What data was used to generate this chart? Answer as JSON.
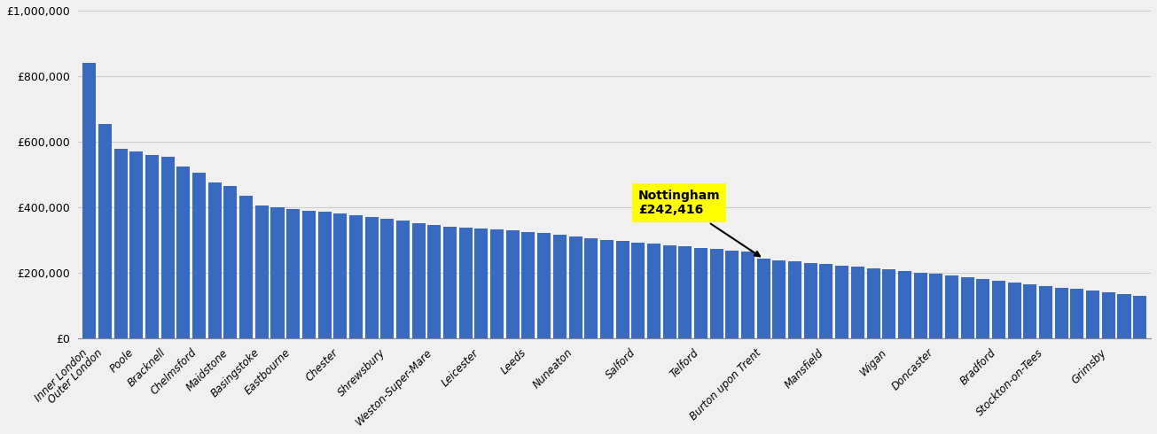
{
  "values": [
    840000,
    655000,
    578000,
    570000,
    560000,
    555000,
    525000,
    505000,
    475000,
    465000,
    435000,
    405000,
    400000,
    395000,
    390000,
    385000,
    380000,
    375000,
    370000,
    365000,
    360000,
    350000,
    345000,
    340000,
    338000,
    335000,
    332000,
    330000,
    325000,
    320000,
    315000,
    310000,
    305000,
    300000,
    296000,
    292000,
    288000,
    284000,
    280000,
    276000,
    272000,
    268000,
    264000,
    242416,
    238000,
    234000,
    230000,
    226000,
    222000,
    218000,
    214000,
    210000,
    205000,
    200000,
    196000,
    192000,
    185000,
    180000,
    175000,
    170000,
    165000,
    160000,
    155000,
    150000,
    145000,
    140000,
    135000,
    130000
  ],
  "tick_positions": [
    0,
    1,
    2,
    3,
    4,
    5,
    6,
    7,
    8,
    9,
    10,
    11,
    12,
    13,
    14,
    15,
    16,
    17,
    18,
    19,
    20,
    21,
    22
  ],
  "tick_labels": [
    "Inner London",
    "Outer London",
    "Poole",
    "Bracknell",
    "Chelmsford",
    "Maidstone",
    "Basingstoke",
    "Eastbourne",
    "Chester",
    "Shrewsbury",
    "Weston-Super-Mare",
    "Leicester",
    "Leeds",
    "Nuneaton",
    "Salford",
    "Telford",
    "Burton upon Trent",
    "Mansfield",
    "Wigan",
    "Doncaster",
    "Bradford",
    "Stockton-on-Tees",
    "Grimsby"
  ],
  "nottingham_label": "Nottingham\n£242,416",
  "nottingham_index": 43,
  "bar_color": "#3a6abf",
  "annotation_bg_color": "#ffff00",
  "background_color": "#f0f0f0",
  "ylim": [
    0,
    1000000
  ],
  "ytick_values": [
    0,
    200000,
    400000,
    600000,
    800000,
    1000000
  ]
}
